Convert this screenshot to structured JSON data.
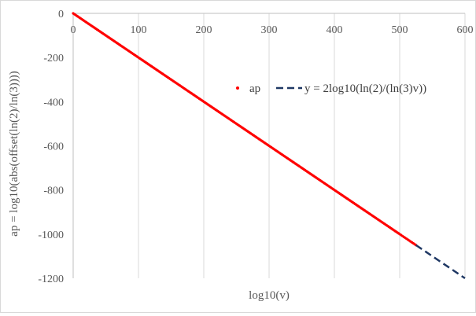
{
  "chart_data": {
    "type": "scatter",
    "xlabel": "log10(v)",
    "ylabel": "ap = log10(abs(offset(ln(2)/ln(3))))",
    "xlim": [
      0,
      600
    ],
    "ylim": [
      -1200,
      0
    ],
    "x_ticks": [
      "0",
      "100",
      "200",
      "300",
      "400",
      "500",
      "600"
    ],
    "y_ticks": [
      "0",
      "-200",
      "-400",
      "-600",
      "-800",
      "-1000",
      "-1200"
    ],
    "x_tick_values": [
      0,
      100,
      200,
      300,
      400,
      500,
      600
    ],
    "y_tick_values": [
      0,
      -200,
      -400,
      -600,
      -800,
      -1000,
      -1200
    ],
    "grid": "vertical-only",
    "legend_position": "inside-right",
    "series": [
      {
        "name": "ap",
        "kind": "markers",
        "color": "#ff0000",
        "x": [
          0,
          20,
          40,
          60,
          80,
          100,
          120,
          140,
          160,
          180,
          200,
          220,
          240,
          260,
          280,
          300,
          320,
          340,
          360,
          380,
          400,
          420,
          440,
          460,
          480,
          500,
          525
        ],
        "y": [
          0,
          -40,
          -80,
          -120,
          -160,
          -200,
          -240,
          -280,
          -320,
          -360,
          -400,
          -440,
          -480,
          -520,
          -560,
          -600,
          -640,
          -680,
          -720,
          -760,
          -800,
          -840,
          -880,
          -920,
          -960,
          -1000,
          -1050
        ]
      },
      {
        "name": "y = 2log10(ln(2)/(ln(3)v))",
        "kind": "dashed-line",
        "color": "#1f3864",
        "x": [
          525,
          600
        ],
        "y": [
          -1050,
          -1200
        ]
      }
    ]
  }
}
